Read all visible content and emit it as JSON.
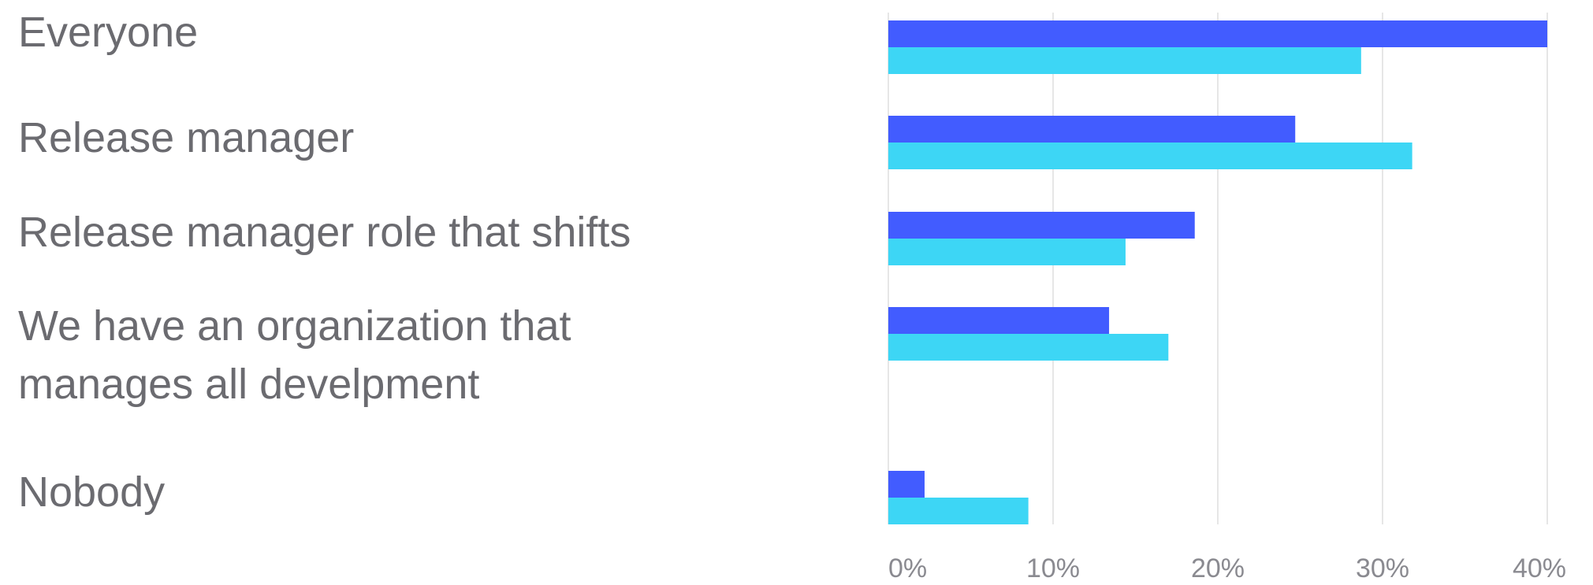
{
  "chart_data": {
    "type": "bar",
    "orientation": "horizontal",
    "categories": [
      "Everyone",
      "Release manager",
      "Release manager role that shifts",
      "We have an organization that manages all develpment",
      "Nobody"
    ],
    "category_lines": [
      [
        "Everyone"
      ],
      [
        "Release manager"
      ],
      [
        "Release manager role that shifts"
      ],
      [
        "We have an organization that",
        "manages all develpment"
      ],
      [
        "Nobody"
      ]
    ],
    "series": [
      {
        "values": [
          40,
          24.7,
          18.6,
          13.4,
          2.2
        ],
        "color": "#425cff"
      },
      {
        "values": [
          28.7,
          31.8,
          14.4,
          17,
          8.5
        ],
        "color": "#3dd6f5"
      }
    ],
    "xlim": [
      0,
      40
    ],
    "xticks": [
      0,
      10,
      20,
      30,
      40
    ],
    "xtick_labels": [
      "0%",
      "10%",
      "20%",
      "30%",
      "40%"
    ],
    "grid": true,
    "title": "",
    "xlabel": "",
    "ylabel": ""
  }
}
